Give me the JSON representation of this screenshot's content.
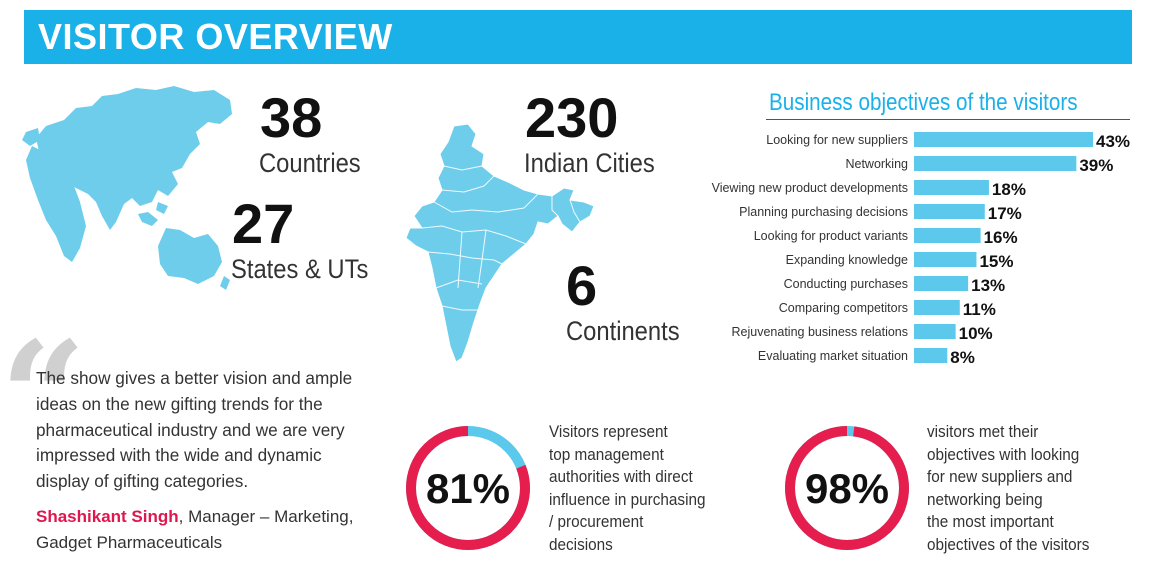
{
  "header": {
    "title": "VISITOR OVERVIEW"
  },
  "stats": {
    "countries": {
      "value": "38",
      "label": "Countries"
    },
    "states": {
      "value": "27",
      "label": "States & UTs"
    },
    "cities": {
      "value": "230",
      "label": "Indian Cities"
    },
    "continents": {
      "value": "6",
      "label": "Continents"
    }
  },
  "colors": {
    "accent": "#1ab0e8",
    "map": "#6dcdeb",
    "bar": "#5bc8ec",
    "donut": "#e61e4d",
    "donut_track": "#5bc8ec"
  },
  "chart_data": {
    "type": "bar",
    "orientation": "horizontal",
    "title": "Business objectives of the visitors",
    "categories": [
      "Looking for new suppliers",
      "Networking",
      "Viewing new product developments",
      "Planning purchasing decisions",
      "Looking for product variants",
      "Expanding knowledge",
      "Conducting purchases",
      "Comparing competitors",
      "Rejuvenating business relations",
      "Evaluating market situation"
    ],
    "values": [
      43,
      39,
      18,
      17,
      16,
      15,
      13,
      11,
      10,
      8
    ],
    "value_labels": [
      "43%",
      "39%",
      "18%",
      "17%",
      "16%",
      "15%",
      "13%",
      "11%",
      "10%",
      "8%"
    ],
    "xlim": [
      0,
      43
    ]
  },
  "testimonial": {
    "text": "The show gives a better vision and ample ideas on the new gifting trends for the pharmaceutical industry and we are very impressed with the wide and dynamic display of gifting categories.",
    "author": "Shashikant Singh",
    "role": ", Manager – Marketing, Gadget Pharmaceuticals"
  },
  "donuts": [
    {
      "value": 81,
      "label": "81%",
      "caption": [
        "Visitors represent",
        "top management",
        "authorities with direct",
        "influence in purchasing",
        "/ procurement",
        "decisions"
      ]
    },
    {
      "value": 98,
      "label": "98%",
      "caption": [
        "visitors met their",
        "objectives with looking",
        "for new suppliers and",
        "networking being",
        "the most important",
        "objectives of the visitors"
      ]
    }
  ]
}
